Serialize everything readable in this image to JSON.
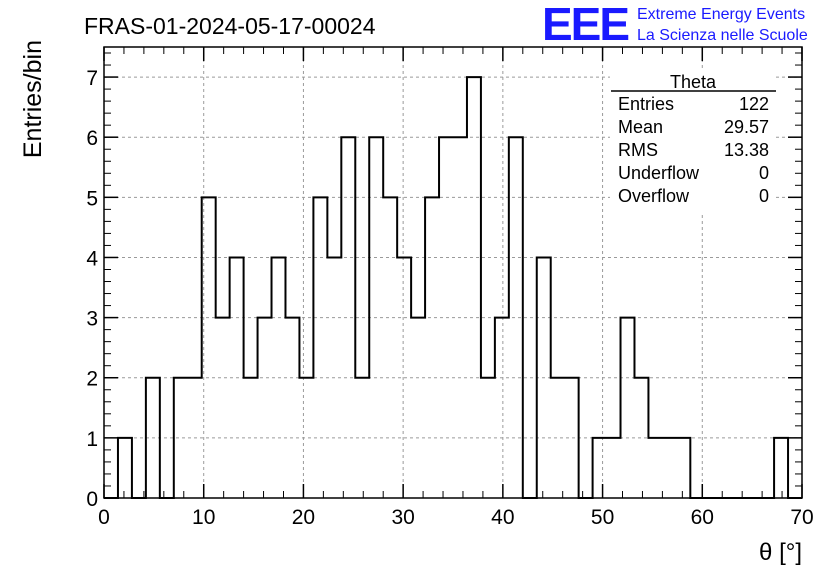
{
  "chart_data": {
    "type": "bar",
    "title": "FRAS-01-2024-05-17-00024",
    "xlabel": "θ [°]",
    "ylabel": "Entries/bin",
    "xlim": [
      0,
      70
    ],
    "ylim": [
      0,
      7.5
    ],
    "bin_width": 1.4,
    "grid": true,
    "x_ticks": [
      0,
      10,
      20,
      30,
      40,
      50,
      60,
      70
    ],
    "y_ticks": [
      0,
      1,
      2,
      3,
      4,
      5,
      6,
      7
    ],
    "values": [
      0,
      1,
      0,
      2,
      0,
      2,
      2,
      5,
      3,
      4,
      2,
      3,
      4,
      3,
      2,
      5,
      4,
      6,
      2,
      6,
      5,
      4,
      3,
      5,
      6,
      6,
      7,
      2,
      3,
      6,
      0,
      4,
      2,
      2,
      0,
      1,
      1,
      3,
      2,
      1,
      1,
      1,
      0,
      0,
      0,
      0,
      0,
      0,
      1,
      0
    ],
    "stats_box": {
      "title": "Theta",
      "placement": "top-right",
      "rows": [
        {
          "label": "Entries",
          "value": "122"
        },
        {
          "label": "Mean",
          "value": "29.57"
        },
        {
          "label": "RMS",
          "value": "13.38"
        },
        {
          "label": "Underflow",
          "value": "0"
        },
        {
          "label": "Overflow",
          "value": "0"
        }
      ]
    }
  },
  "logo": {
    "mark": "EEE",
    "line1": "Extreme Energy Events",
    "line2": "La Scienza nelle Scuole",
    "color": "#1a1aff"
  }
}
